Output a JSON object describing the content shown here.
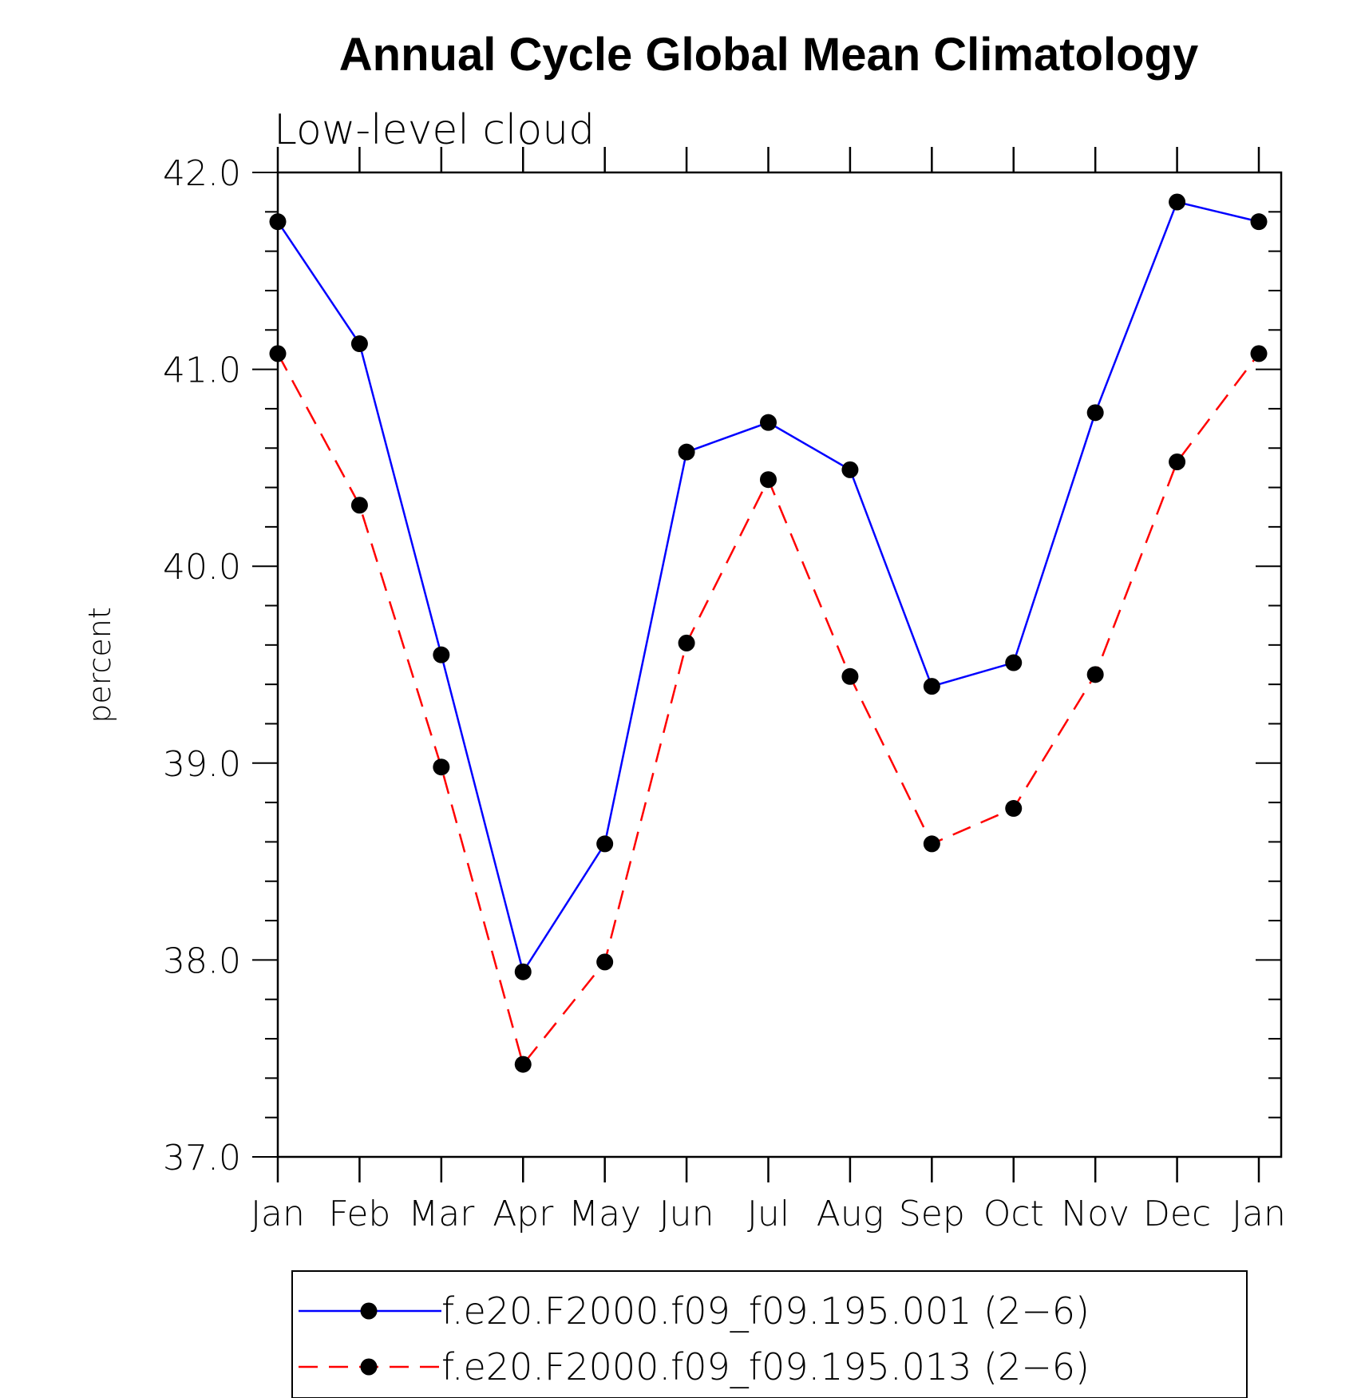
{
  "chart_data": {
    "type": "line",
    "title": "Annual Cycle Global Mean Climatology",
    "subtitle": "Low-level cloud",
    "xlabel": "",
    "ylabel": "percent",
    "ylim": [
      37.0,
      42.0
    ],
    "y_major_ticks": [
      37.0,
      38.0,
      39.0,
      40.0,
      41.0,
      42.0
    ],
    "y_tick_labels": [
      "37.0",
      "38.0",
      "39.0",
      "40.0",
      "41.0",
      "42.0"
    ],
    "y_minor_step": 0.2,
    "categories": [
      "Jan",
      "Feb",
      "Mar",
      "Apr",
      "May",
      "Jun",
      "Jul",
      "Aug",
      "Sep",
      "Oct",
      "Nov",
      "Dec",
      "Jan"
    ],
    "grid": false,
    "legend_position": "bottom",
    "series": [
      {
        "name": "f.e20.F2000.f09_f09.195.001 (2−6)",
        "color": "#0000ff",
        "dash": "solid",
        "marker": "filled-circle",
        "values": [
          41.75,
          41.13,
          39.55,
          37.94,
          38.59,
          40.58,
          40.73,
          40.49,
          39.39,
          39.51,
          40.78,
          41.85,
          41.75
        ]
      },
      {
        "name": "f.e20.F2000.f09_f09.195.013 (2−6)",
        "color": "#ff0000",
        "dash": "dashed",
        "marker": "filled-circle",
        "values": [
          41.08,
          40.31,
          38.98,
          37.47,
          37.99,
          39.61,
          40.44,
          39.44,
          38.59,
          38.77,
          39.45,
          40.53,
          41.08
        ]
      }
    ]
  }
}
